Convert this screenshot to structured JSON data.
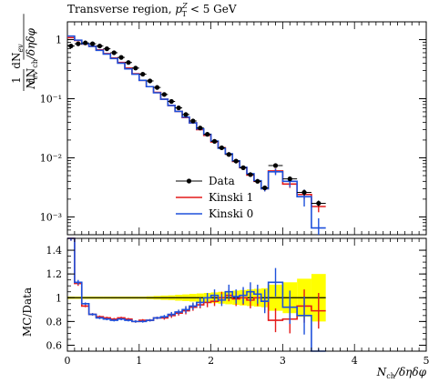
{
  "title": "Transverse region, p_T^Z < 5 GeV",
  "title_main": "Transverse region, ",
  "title_pT": "p",
  "title_pT_sub": "T",
  "title_pT_sup": "Z",
  "title_cut": " < 5 GeV",
  "chart_data": [
    {
      "type": "line",
      "panel": "main",
      "xlabel": "N_ch / δηδφ",
      "xlabel_N": "N",
      "xlabel_sub": "ch",
      "xlabel_rest": "/δηδφ",
      "ylabel": "1/N_ev dN_ev/dN_ch/δηδφ",
      "ylabel_num": "1",
      "ylabel_den_N": "N",
      "ylabel_den_sub": "ev",
      "ylabel_frac_num": "dN",
      "ylabel_frac_num_sub": "ev",
      "ylabel_frac_den": "dN",
      "ylabel_frac_den_sub": "ch",
      "ylabel_frac_den_rest": "/δηδφ",
      "yscale": "log",
      "xlim": [
        0,
        5
      ],
      "ylim": [
        0.0005,
        2.0
      ],
      "ytick_labels": [
        "1",
        "10⁻¹",
        "10⁻²",
        "10⁻³"
      ],
      "legend_placement": "bottom-center",
      "bin_edges": [
        0.0,
        0.1,
        0.2,
        0.3,
        0.4,
        0.5,
        0.6,
        0.7,
        0.8,
        0.9,
        1.0,
        1.1,
        1.2,
        1.3,
        1.4,
        1.5,
        1.6,
        1.7,
        1.8,
        1.9,
        2.0,
        2.1,
        2.2,
        2.3,
        2.4,
        2.5,
        2.6,
        2.7,
        2.8,
        3.0,
        3.2,
        3.4,
        3.6
      ],
      "series": [
        {
          "name": "Data",
          "color": "#000000",
          "style": "points",
          "x": [
            0.05,
            0.15,
            0.25,
            0.35,
            0.45,
            0.55,
            0.65,
            0.75,
            0.85,
            0.95,
            1.05,
            1.15,
            1.25,
            1.35,
            1.45,
            1.55,
            1.65,
            1.75,
            1.85,
            1.95,
            2.05,
            2.15,
            2.25,
            2.35,
            2.45,
            2.55,
            2.65,
            2.75,
            2.9,
            3.1,
            3.3,
            3.5
          ],
          "values": [
            0.78,
            0.85,
            0.88,
            0.85,
            0.78,
            0.7,
            0.6,
            0.5,
            0.41,
            0.33,
            0.26,
            0.2,
            0.155,
            0.118,
            0.09,
            0.07,
            0.054,
            0.042,
            0.032,
            0.025,
            0.019,
            0.0148,
            0.0114,
            0.0088,
            0.0068,
            0.0052,
            0.004,
            0.0031,
            0.0074,
            0.0044,
            0.0026,
            0.0017
          ],
          "errors": [
            0.01,
            0.01,
            0.01,
            0.01,
            0.01,
            0.01,
            0.01,
            0.01,
            0.005,
            0.005,
            0.005,
            0.003,
            0.003,
            0.002,
            0.002,
            0.001,
            0.001,
            0.001,
            0.001,
            0.0005,
            0.0004,
            0.0003,
            0.0003,
            0.0002,
            0.0002,
            0.0002,
            0.0002,
            0.0002,
            0.0004,
            0.0003,
            0.0003,
            0.0002
          ]
        },
        {
          "name": "Kinski 1",
          "color": "#e41a1a",
          "style": "steps",
          "values": [
            1.08,
            0.97,
            0.84,
            0.77,
            0.67,
            0.58,
            0.49,
            0.41,
            0.33,
            0.265,
            0.205,
            0.16,
            0.128,
            0.098,
            0.077,
            0.061,
            0.048,
            0.039,
            0.03,
            0.024,
            0.0185,
            0.0148,
            0.0116,
            0.0087,
            0.0068,
            0.0051,
            0.004,
            0.003,
            0.006,
            0.0036,
            0.0024,
            0.0015
          ],
          "errors": [
            0.01,
            0.01,
            0.01,
            0.01,
            0.01,
            0.01,
            0.01,
            0.005,
            0.005,
            0.003,
            0.003,
            0.002,
            0.002,
            0.002,
            0.001,
            0.001,
            0.001,
            0.001,
            0.0006,
            0.0005,
            0.0004,
            0.0004,
            0.0003,
            0.0003,
            0.0003,
            0.0003,
            0.0002,
            0.0003,
            0.0006,
            0.0005,
            0.0004,
            0.0003
          ]
        },
        {
          "name": "Kinski 0",
          "color": "#1e50dc",
          "style": "steps",
          "values": [
            1.15,
            0.98,
            0.85,
            0.77,
            0.66,
            0.57,
            0.48,
            0.4,
            0.32,
            0.26,
            0.205,
            0.16,
            0.126,
            0.098,
            0.077,
            0.061,
            0.049,
            0.039,
            0.031,
            0.025,
            0.0192,
            0.0145,
            0.0117,
            0.0089,
            0.0069,
            0.0054,
            0.0041,
            0.003,
            0.0058,
            0.004,
            0.0022,
            0.00065
          ],
          "errors": [
            0.01,
            0.01,
            0.01,
            0.01,
            0.01,
            0.01,
            0.01,
            0.005,
            0.005,
            0.003,
            0.003,
            0.002,
            0.002,
            0.002,
            0.001,
            0.001,
            0.001,
            0.001,
            0.0006,
            0.0005,
            0.0004,
            0.0004,
            0.0003,
            0.0003,
            0.0003,
            0.0003,
            0.0003,
            0.0003,
            0.0007,
            0.0008,
            0.0007,
            0.0003
          ]
        }
      ]
    },
    {
      "type": "line",
      "panel": "ratio",
      "ylabel": "MC/Data",
      "xlabel": "N_ch / δηδφ",
      "xlim": [
        0,
        5
      ],
      "ylim": [
        0.55,
        1.5
      ],
      "yticks": [
        0.6,
        0.8,
        1.0,
        1.2,
        1.4
      ],
      "ytick_labels": [
        "0.6",
        "0.8",
        "1",
        "1.2",
        "1.4"
      ],
      "xticks": [
        0,
        1,
        2,
        3,
        4,
        5
      ],
      "xtick_labels": [
        "0",
        "1",
        "2",
        "3",
        "4",
        "5"
      ],
      "band_color": "#ffff00",
      "band_half_width": [
        0.01,
        0.01,
        0.01,
        0.01,
        0.01,
        0.01,
        0.01,
        0.01,
        0.01,
        0.01,
        0.01,
        0.012,
        0.015,
        0.018,
        0.02,
        0.025,
        0.028,
        0.032,
        0.036,
        0.04,
        0.045,
        0.05,
        0.055,
        0.06,
        0.065,
        0.07,
        0.075,
        0.08,
        0.11,
        0.13,
        0.16,
        0.2
      ],
      "series": [
        {
          "name": "Kinski 1",
          "color": "#e41a1a",
          "values": [
            1.5,
            1.12,
            0.93,
            0.86,
            0.84,
            0.83,
            0.82,
            0.83,
            0.82,
            0.8,
            0.81,
            0.81,
            0.83,
            0.83,
            0.85,
            0.87,
            0.89,
            0.92,
            0.94,
            0.96,
            0.97,
            1.0,
            1.02,
            0.99,
            1.0,
            0.98,
            1.0,
            0.97,
            0.81,
            0.82,
            0.93,
            0.89
          ],
          "errors": [
            0.02,
            0.02,
            0.01,
            0.01,
            0.01,
            0.01,
            0.01,
            0.01,
            0.01,
            0.01,
            0.01,
            0.01,
            0.01,
            0.015,
            0.02,
            0.02,
            0.03,
            0.03,
            0.03,
            0.04,
            0.04,
            0.05,
            0.05,
            0.06,
            0.06,
            0.07,
            0.07,
            0.08,
            0.1,
            0.12,
            0.14,
            0.15
          ]
        },
        {
          "name": "Kinski 0",
          "color": "#1e50dc",
          "values": [
            1.5,
            1.13,
            0.95,
            0.86,
            0.83,
            0.82,
            0.81,
            0.82,
            0.81,
            0.8,
            0.8,
            0.81,
            0.83,
            0.84,
            0.86,
            0.88,
            0.9,
            0.93,
            0.96,
            1.0,
            1.02,
            0.98,
            1.05,
            1.01,
            1.02,
            1.05,
            1.03,
            0.97,
            1.13,
            0.92,
            0.85,
            0.37
          ],
          "errors": [
            0.02,
            0.02,
            0.01,
            0.01,
            0.01,
            0.01,
            0.01,
            0.01,
            0.01,
            0.01,
            0.01,
            0.01,
            0.01,
            0.015,
            0.02,
            0.02,
            0.03,
            0.03,
            0.04,
            0.04,
            0.05,
            0.05,
            0.06,
            0.06,
            0.07,
            0.08,
            0.08,
            0.1,
            0.12,
            0.14,
            0.16,
            0.2
          ]
        }
      ]
    }
  ]
}
